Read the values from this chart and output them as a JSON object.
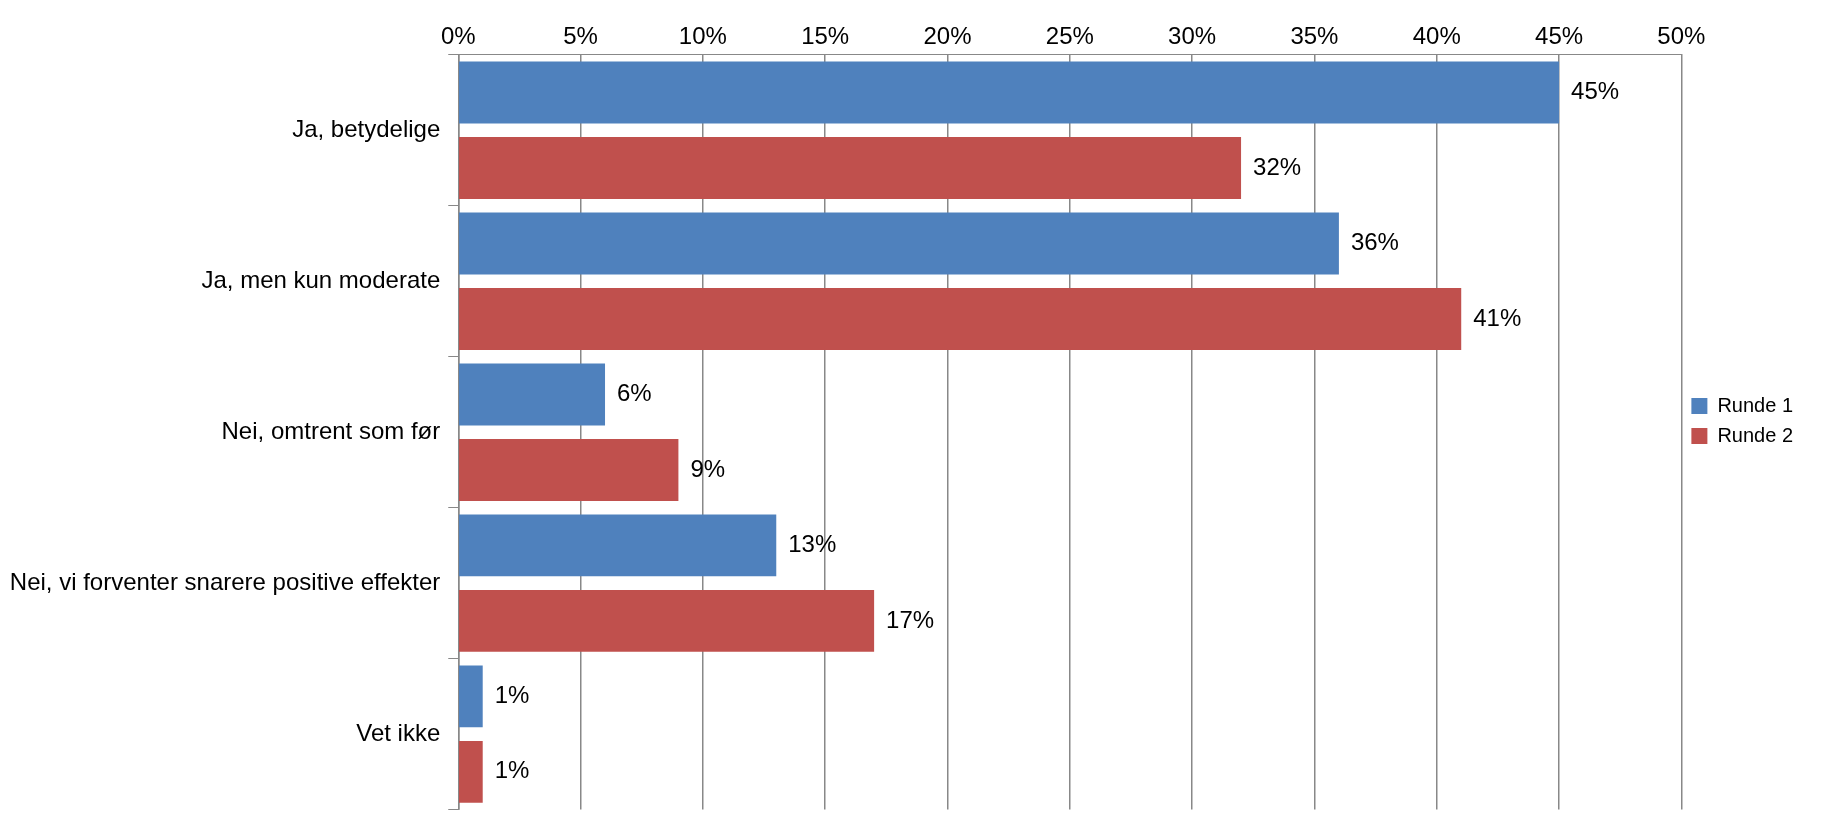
{
  "chart_data": {
    "type": "bar",
    "orientation": "horizontal",
    "categories": [
      "Ja, betydelige",
      "Ja, men kun moderate",
      "Nei, omtrent som før",
      "Nei, vi forventer snarere positive effekter",
      "Vet ikke"
    ],
    "series": [
      {
        "name": "Runde 1",
        "color": "#4f81bd",
        "values": [
          45,
          36,
          6,
          13,
          1
        ],
        "value_labels": [
          "45%",
          "36%",
          "6%",
          "13%",
          "1%"
        ]
      },
      {
        "name": "Runde 2",
        "color": "#c0504d",
        "values": [
          32,
          41,
          9,
          17,
          1
        ],
        "value_labels": [
          "32%",
          "41%",
          "9%",
          "17%",
          "1%"
        ]
      }
    ],
    "xlim": [
      0,
      50
    ],
    "xticks": [
      {
        "value": 0,
        "label": "0%"
      },
      {
        "value": 5,
        "label": "5%"
      },
      {
        "value": 10,
        "label": "10%"
      },
      {
        "value": 15,
        "label": "15%"
      },
      {
        "value": 20,
        "label": "20%"
      },
      {
        "value": 25,
        "label": "25%"
      },
      {
        "value": 30,
        "label": "30%"
      },
      {
        "value": 35,
        "label": "35%"
      },
      {
        "value": 40,
        "label": "40%"
      },
      {
        "value": 45,
        "label": "45%"
      },
      {
        "value": 50,
        "label": "50%"
      }
    ],
    "grid": "x",
    "legend": "right"
  }
}
